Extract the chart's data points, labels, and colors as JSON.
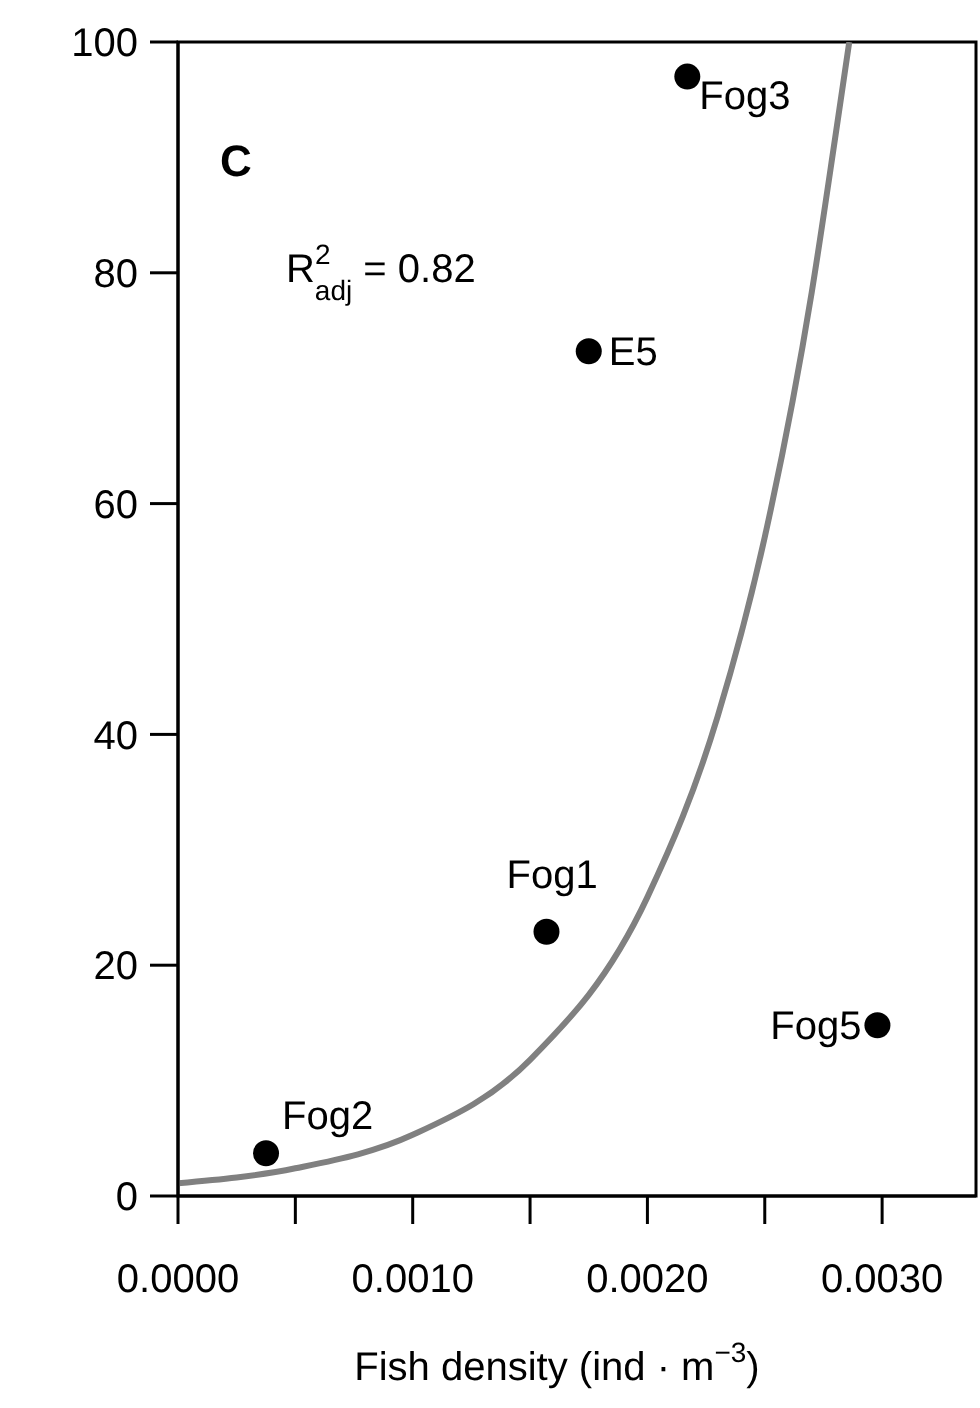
{
  "chart_data": {
    "type": "scatter",
    "xlabel": "Fish density (ind · m$^{−3}$)",
    "xlim": [
      0,
      0.0034
    ],
    "xticks": [
      {
        "value": 0,
        "label": "0.0000"
      },
      {
        "value": 0.0005,
        "label": null
      },
      {
        "value": 0.001,
        "label": "0.0010"
      },
      {
        "value": 0.0015,
        "label": null
      },
      {
        "value": 0.002,
        "label": "0.0020"
      },
      {
        "value": 0.0025,
        "label": null
      },
      {
        "value": 0.003,
        "label": "0.0030"
      }
    ],
    "ylim": [
      0,
      100
    ],
    "yticks": [
      0,
      20,
      40,
      60,
      80,
      100
    ],
    "series": [
      {
        "color": "#000000",
        "marker": "circle",
        "x": [
          0.000375,
          0.00157,
          0.00298,
          0.00175,
          0.00217
        ],
        "values": [
          3.7,
          22.9,
          14.8,
          73.2,
          97
        ]
      },
      {
        "type": "line",
        "color": "#808080",
        "marker": "none",
        "line_style": "solid",
        "x": [
          0,
          0.0005,
          0.001,
          0.0015,
          0.002,
          0.0023,
          0.0025,
          0.0027,
          0.0028,
          0.00286
        ],
        "values": [
          1.1,
          2.4,
          5.3,
          11.8,
          25.9,
          41.6,
          57.1,
          78.3,
          91.7,
          100
        ]
      }
    ],
    "annotations": [
      {
        "text": "Fog2",
        "x": 0.000375,
        "y": 3.7
      },
      {
        "text": "Fog1",
        "x": 0.00157,
        "y": 22.9
      },
      {
        "text": "Fog5",
        "x": 0.00298,
        "y": 14.8
      },
      {
        "text": "E5",
        "x": 0.00175,
        "y": 73.2
      },
      {
        "text": "Fog3",
        "x": 0.00217,
        "y": 97
      },
      "C",
      "R$^{2}$$_{adj}$ = 0.82"
    ]
  }
}
